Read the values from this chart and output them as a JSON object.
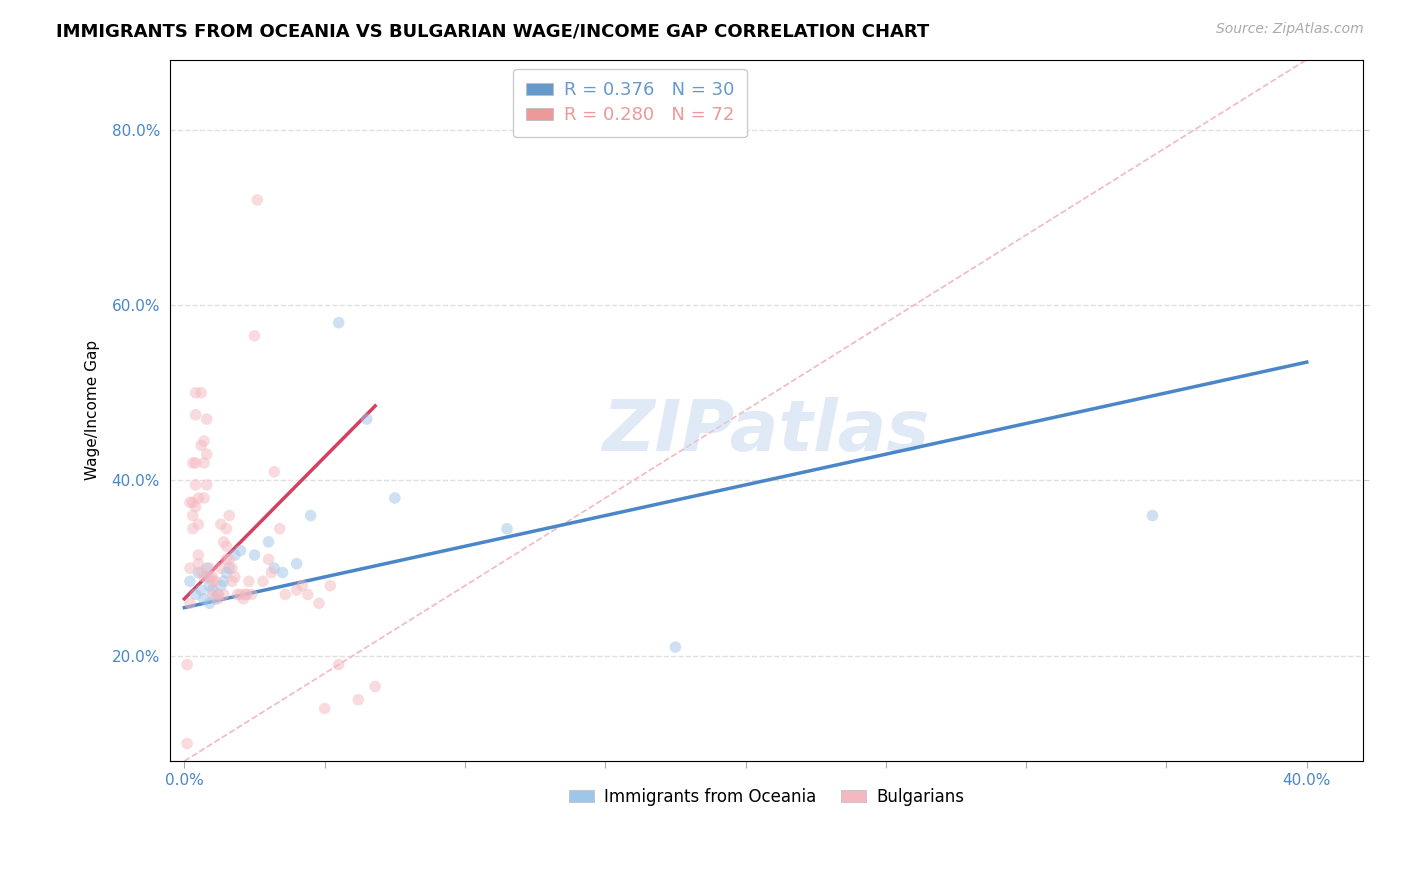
{
  "title": "IMMIGRANTS FROM OCEANIA VS BULGARIAN WAGE/INCOME GAP CORRELATION CHART",
  "source": "Source: ZipAtlas.com",
  "xlim": [
    -0.005,
    0.42
  ],
  "ylim": [
    0.08,
    0.88
  ],
  "ylabel_ticks": [
    0.2,
    0.4,
    0.6,
    0.8
  ],
  "ylabel_labels": [
    "20.0%",
    "40.0%",
    "60.0%",
    "80.0%"
  ],
  "xtick_positions": [
    0.0,
    0.05,
    0.1,
    0.15,
    0.2,
    0.25,
    0.3,
    0.35,
    0.4
  ],
  "xlabel_show_labels": [
    0.0,
    0.4
  ],
  "xlabel_label_map": {
    "0.0": "0.0%",
    "0.4": "40.0%"
  },
  "legend_entries": [
    {
      "label": "R = 0.376   N = 30",
      "color": "#6699cc"
    },
    {
      "label": "R = 0.280   N = 72",
      "color": "#ee9999"
    }
  ],
  "watermark": "ZIPatlas",
  "blue_scatter_x": [
    0.002,
    0.004,
    0.005,
    0.006,
    0.007,
    0.008,
    0.008,
    0.009,
    0.009,
    0.01,
    0.011,
    0.012,
    0.013,
    0.014,
    0.015,
    0.016,
    0.018,
    0.02,
    0.025,
    0.03,
    0.032,
    0.035,
    0.04,
    0.045,
    0.055,
    0.065,
    0.075,
    0.115,
    0.175,
    0.345
  ],
  "blue_scatter_y": [
    0.285,
    0.27,
    0.295,
    0.275,
    0.265,
    0.29,
    0.3,
    0.26,
    0.28,
    0.275,
    0.265,
    0.27,
    0.28,
    0.285,
    0.295,
    0.3,
    0.315,
    0.32,
    0.315,
    0.33,
    0.3,
    0.295,
    0.305,
    0.36,
    0.58,
    0.47,
    0.38,
    0.345,
    0.21,
    0.36
  ],
  "pink_scatter_x": [
    0.001,
    0.001,
    0.002,
    0.002,
    0.002,
    0.003,
    0.003,
    0.003,
    0.003,
    0.004,
    0.004,
    0.004,
    0.004,
    0.004,
    0.005,
    0.005,
    0.005,
    0.005,
    0.006,
    0.006,
    0.006,
    0.007,
    0.007,
    0.007,
    0.007,
    0.008,
    0.008,
    0.008,
    0.009,
    0.009,
    0.01,
    0.01,
    0.01,
    0.011,
    0.012,
    0.012,
    0.013,
    0.013,
    0.014,
    0.014,
    0.015,
    0.015,
    0.015,
    0.016,
    0.016,
    0.017,
    0.017,
    0.018,
    0.019,
    0.02,
    0.021,
    0.022,
    0.022,
    0.023,
    0.024,
    0.025,
    0.026,
    0.028,
    0.03,
    0.031,
    0.032,
    0.034,
    0.036,
    0.04,
    0.042,
    0.044,
    0.048,
    0.05,
    0.052,
    0.055,
    0.062,
    0.068
  ],
  "pink_scatter_y": [
    0.19,
    0.1,
    0.3,
    0.26,
    0.375,
    0.375,
    0.345,
    0.36,
    0.42,
    0.37,
    0.42,
    0.5,
    0.475,
    0.395,
    0.38,
    0.35,
    0.315,
    0.305,
    0.5,
    0.44,
    0.295,
    0.38,
    0.42,
    0.445,
    0.29,
    0.47,
    0.43,
    0.395,
    0.29,
    0.3,
    0.285,
    0.29,
    0.27,
    0.285,
    0.265,
    0.27,
    0.35,
    0.3,
    0.33,
    0.27,
    0.325,
    0.345,
    0.31,
    0.31,
    0.36,
    0.3,
    0.285,
    0.29,
    0.27,
    0.27,
    0.265,
    0.27,
    0.27,
    0.285,
    0.27,
    0.565,
    0.72,
    0.285,
    0.31,
    0.295,
    0.41,
    0.345,
    0.27,
    0.275,
    0.28,
    0.27,
    0.26,
    0.14,
    0.28,
    0.19,
    0.15,
    0.165
  ],
  "blue_line_x": [
    0.0,
    0.4
  ],
  "blue_line_y": [
    0.255,
    0.535
  ],
  "pink_line_x": [
    0.0,
    0.068
  ],
  "pink_line_y": [
    0.265,
    0.485
  ],
  "diag_line_x": [
    0.0,
    0.4
  ],
  "diag_line_y": [
    0.08,
    0.88
  ],
  "blue_color": "#9fc5e8",
  "pink_color": "#f4b8c1",
  "blue_line_color": "#4a86c8",
  "pink_line_color": "#d44060",
  "diag_line_color": "#f4b8c1",
  "grid_color": "#e0e0e0",
  "title_fontsize": 13,
  "source_fontsize": 10,
  "axis_label_fontsize": 11,
  "tick_label_color": "#4a86c8",
  "scatter_size": 70,
  "scatter_alpha": 0.5,
  "ylabel_label": "Wage/Income Gap"
}
